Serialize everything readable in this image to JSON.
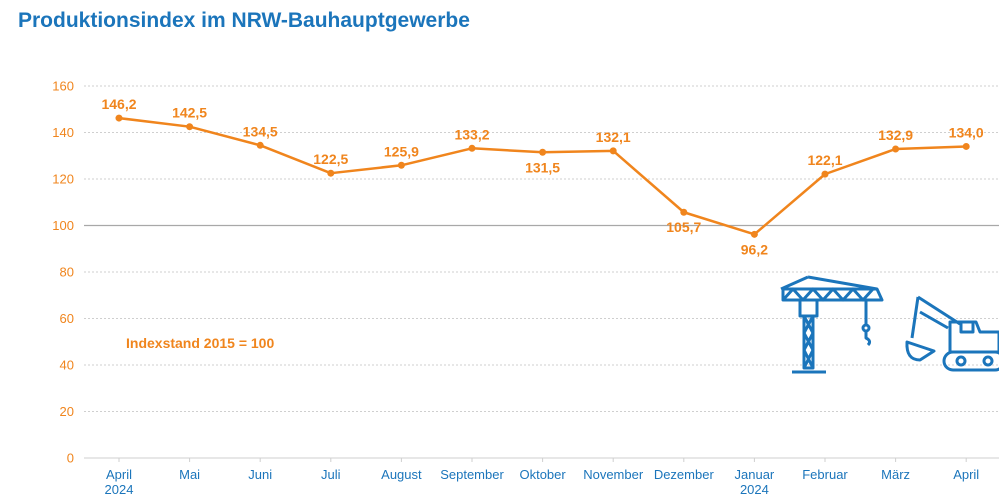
{
  "title": "Produktionsindex im NRW-Bauhauptgewerbe",
  "chart_data": {
    "type": "line",
    "title": "Produktionsindex im NRW-Bauhauptgewerbe",
    "annotation": "Indexstand 2015 = 100",
    "categories": [
      [
        "April",
        "2024"
      ],
      [
        "Mai"
      ],
      [
        "Juni"
      ],
      [
        "Juli"
      ],
      [
        "August"
      ],
      [
        "September"
      ],
      [
        "Oktober"
      ],
      [
        "November"
      ],
      [
        "Dezember"
      ],
      [
        "Januar",
        "2024"
      ],
      [
        "Februar"
      ],
      [
        "März"
      ],
      [
        "April"
      ]
    ],
    "series": [
      {
        "values": [
          146.2,
          142.5,
          134.5,
          122.5,
          125.9,
          133.2,
          131.5,
          132.1,
          105.7,
          96.2,
          122.1,
          132.9,
          134.0
        ]
      }
    ],
    "value_labels": [
      "146,2",
      "142,5",
      "134,5",
      "122,5",
      "125,9",
      "133,2",
      "131,5",
      "132,1",
      "105,7",
      "96,2",
      "122,1",
      "132,9",
      "134,0"
    ],
    "yticks": [
      0,
      20,
      40,
      60,
      80,
      100,
      120,
      140,
      160
    ],
    "ylim": [
      0,
      160
    ],
    "grid": true,
    "colors": {
      "line": "#f0851d",
      "axis_text": "#f0851d",
      "category_text": "#1b75bb",
      "grid": "#cfcfcf",
      "baseline100": "#a8a8a8",
      "icons": "#1b75bb",
      "title": "#1b75bb"
    }
  },
  "icons": [
    "crane-icon",
    "excavator-icon"
  ]
}
